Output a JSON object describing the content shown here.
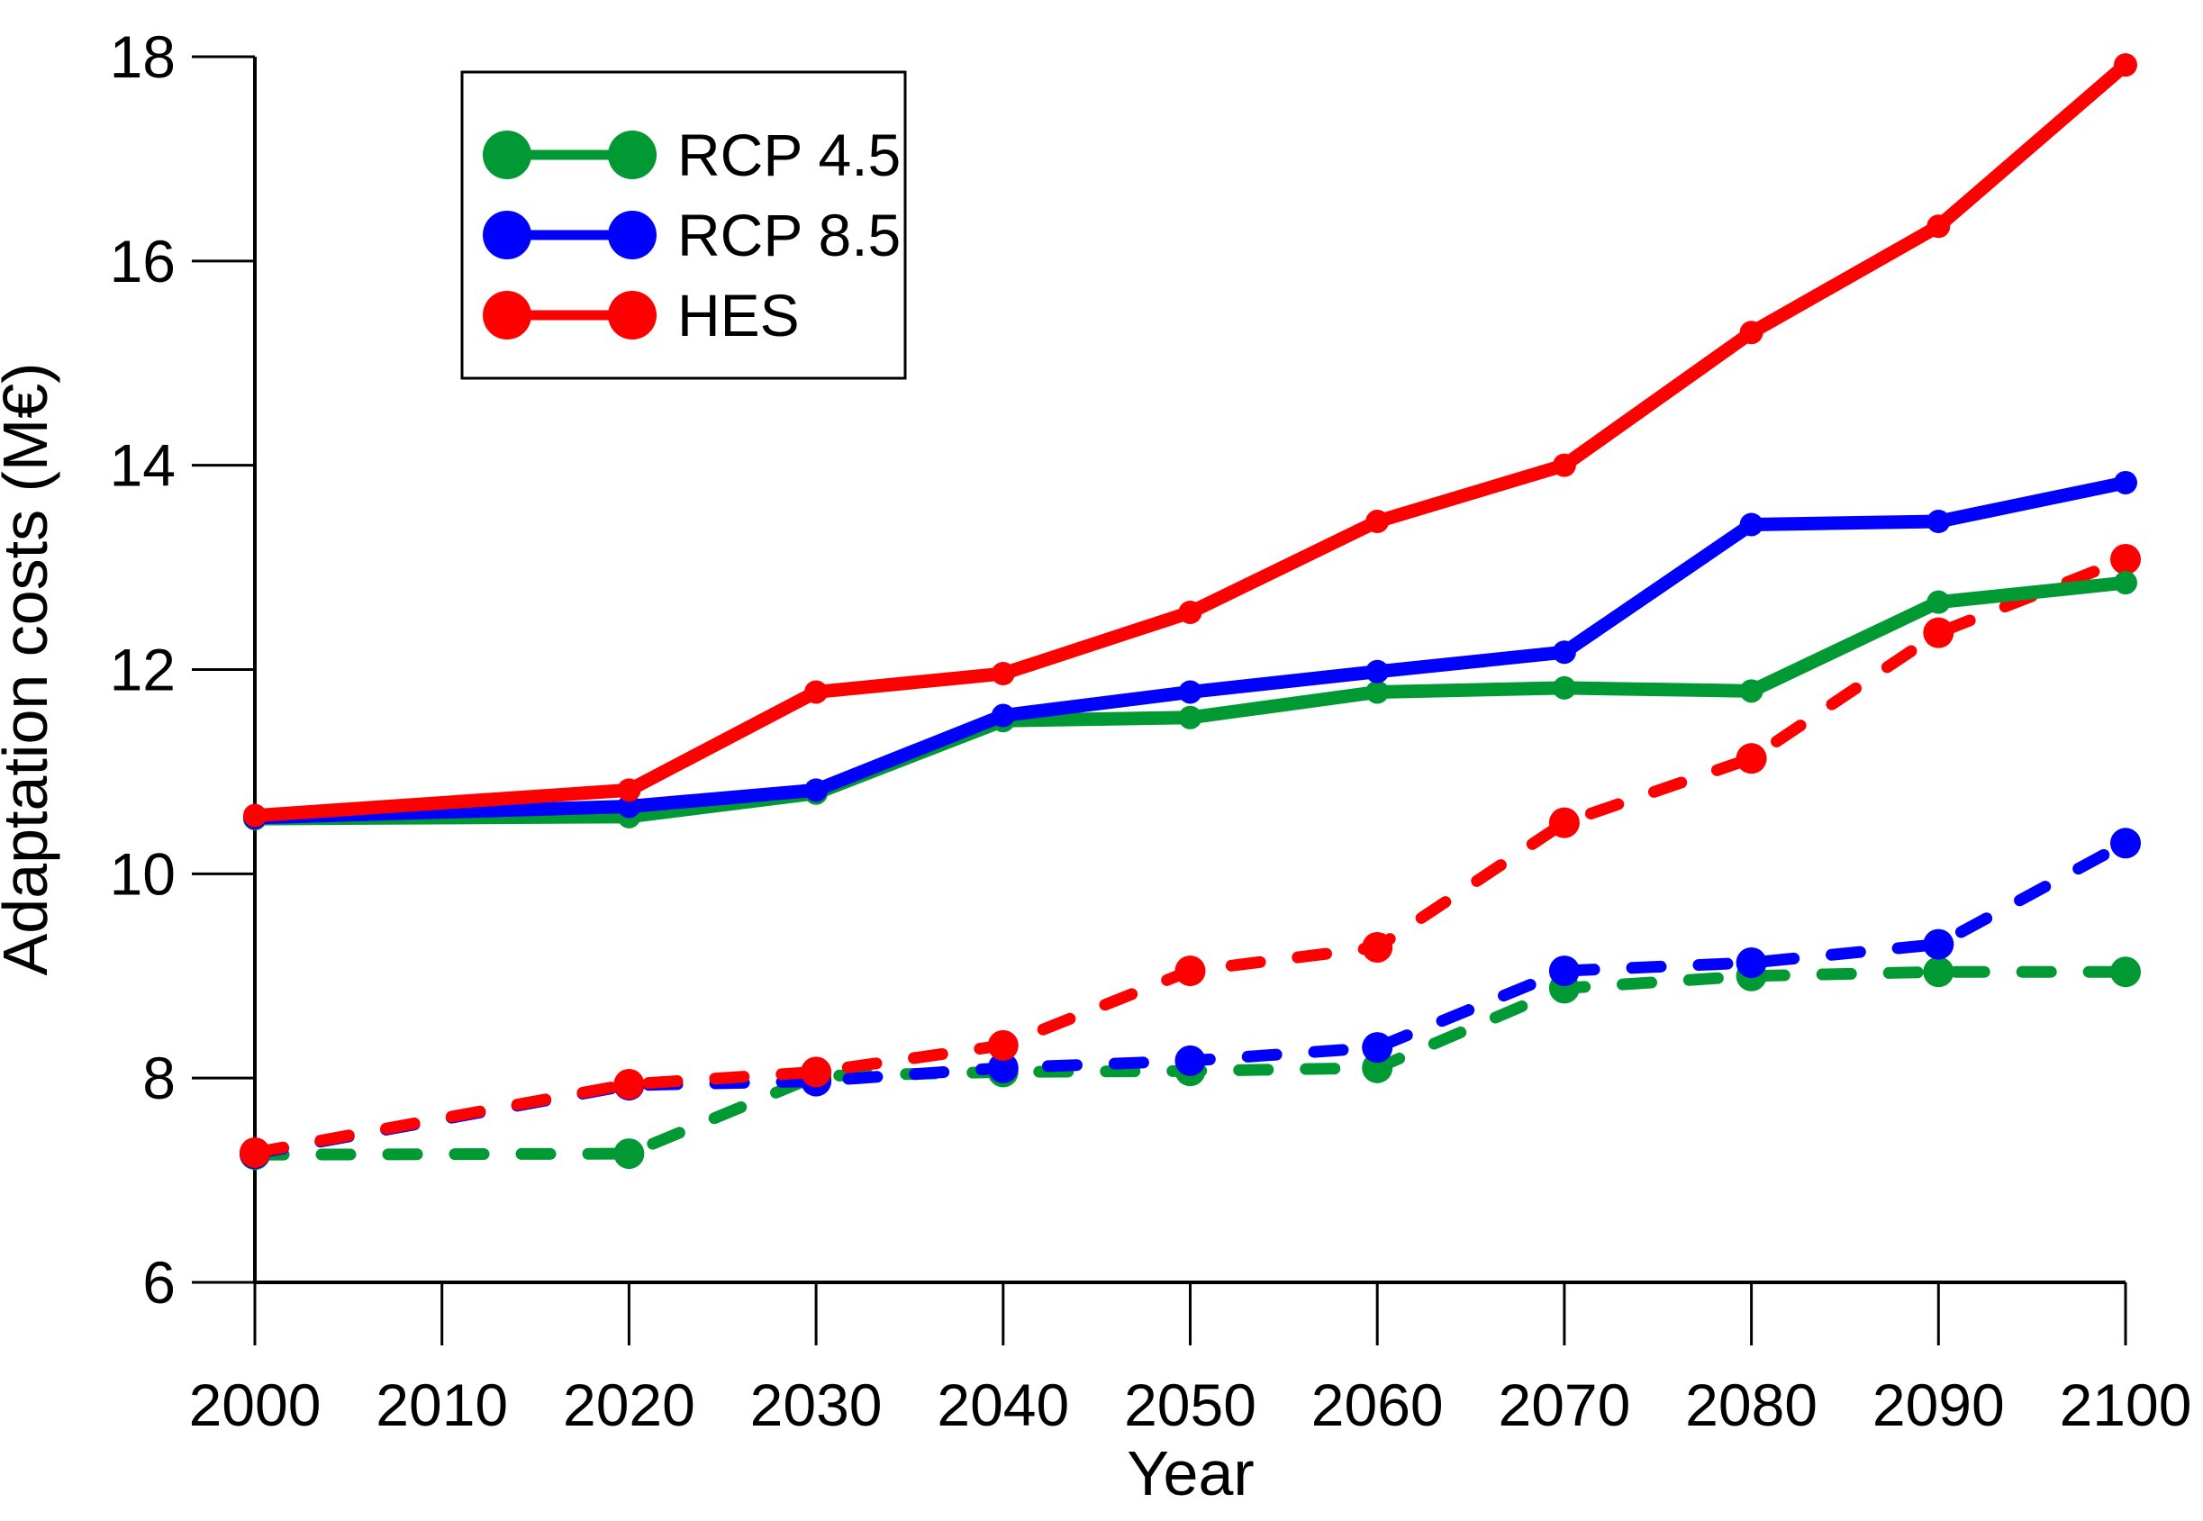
{
  "figure": {
    "background": "#ffffff",
    "axis_color": "#000000"
  },
  "chart_data": {
    "type": "line",
    "title": "",
    "xlabel": "Year",
    "ylabel": "Adaptation costs (M€)",
    "xlim": [
      2000,
      2100
    ],
    "ylim": [
      6,
      18
    ],
    "grid": false,
    "x_ticks": [
      2000,
      2010,
      2020,
      2030,
      2040,
      2050,
      2060,
      2070,
      2080,
      2090,
      2100
    ],
    "x_tick_labels": [
      "2000",
      "2010",
      "2020",
      "2030",
      "2040",
      "2050",
      "2060",
      "2070",
      "2080",
      "2090",
      "2100"
    ],
    "y_ticks": [
      6,
      8,
      10,
      12,
      14,
      16,
      18
    ],
    "y_tick_labels": [
      "6",
      "8",
      "10",
      "12",
      "14",
      "16",
      "18"
    ],
    "x": [
      2000,
      2020,
      2030,
      2040,
      2050,
      2060,
      2070,
      2080,
      2090,
      2100
    ],
    "series": [
      {
        "name": "RCP 4.5 dashed",
        "legend_label": "RCP 4.5",
        "color": "#009933",
        "dashed": true,
        "values": [
          7.25,
          7.26,
          8.02,
          8.06,
          8.07,
          8.1,
          8.88,
          9.0,
          9.04,
          9.04
        ]
      },
      {
        "name": "RCP 8.5 dashed",
        "legend_label": "RCP 8.5",
        "color": "#0000ff",
        "dashed": true,
        "values": [
          7.26,
          7.93,
          7.97,
          8.1,
          8.17,
          8.3,
          9.05,
          9.13,
          9.31,
          10.3
        ]
      },
      {
        "name": "HES dashed",
        "legend_label": "HES",
        "color": "#ff0000",
        "dashed": true,
        "values": [
          7.27,
          7.94,
          8.06,
          8.32,
          9.05,
          9.28,
          10.5,
          11.13,
          12.36,
          13.08
        ]
      },
      {
        "name": "RCP 4.5 solid",
        "legend_label": "RCP 4.5",
        "color": "#009933",
        "dashed": false,
        "values": [
          10.54,
          10.56,
          10.79,
          11.5,
          11.53,
          11.78,
          11.82,
          11.79,
          12.66,
          12.85
        ]
      },
      {
        "name": "RCP 8.5 solid",
        "legend_label": "RCP 8.5",
        "color": "#0000ff",
        "dashed": false,
        "values": [
          10.55,
          10.66,
          10.82,
          11.55,
          11.78,
          11.98,
          12.17,
          13.42,
          13.45,
          13.83
        ]
      },
      {
        "name": "HES solid",
        "legend_label": "HES",
        "color": "#ff0000",
        "dashed": false,
        "values": [
          10.57,
          10.82,
          11.78,
          11.96,
          12.56,
          13.45,
          14.0,
          15.3,
          16.34,
          17.92
        ]
      }
    ],
    "legend": {
      "position": "upper-left",
      "entries": [
        {
          "label": "RCP 4.5",
          "color": "#009933"
        },
        {
          "label": "RCP 8.5",
          "color": "#0000ff"
        },
        {
          "label": "HES",
          "color": "#ff0000"
        }
      ]
    }
  }
}
